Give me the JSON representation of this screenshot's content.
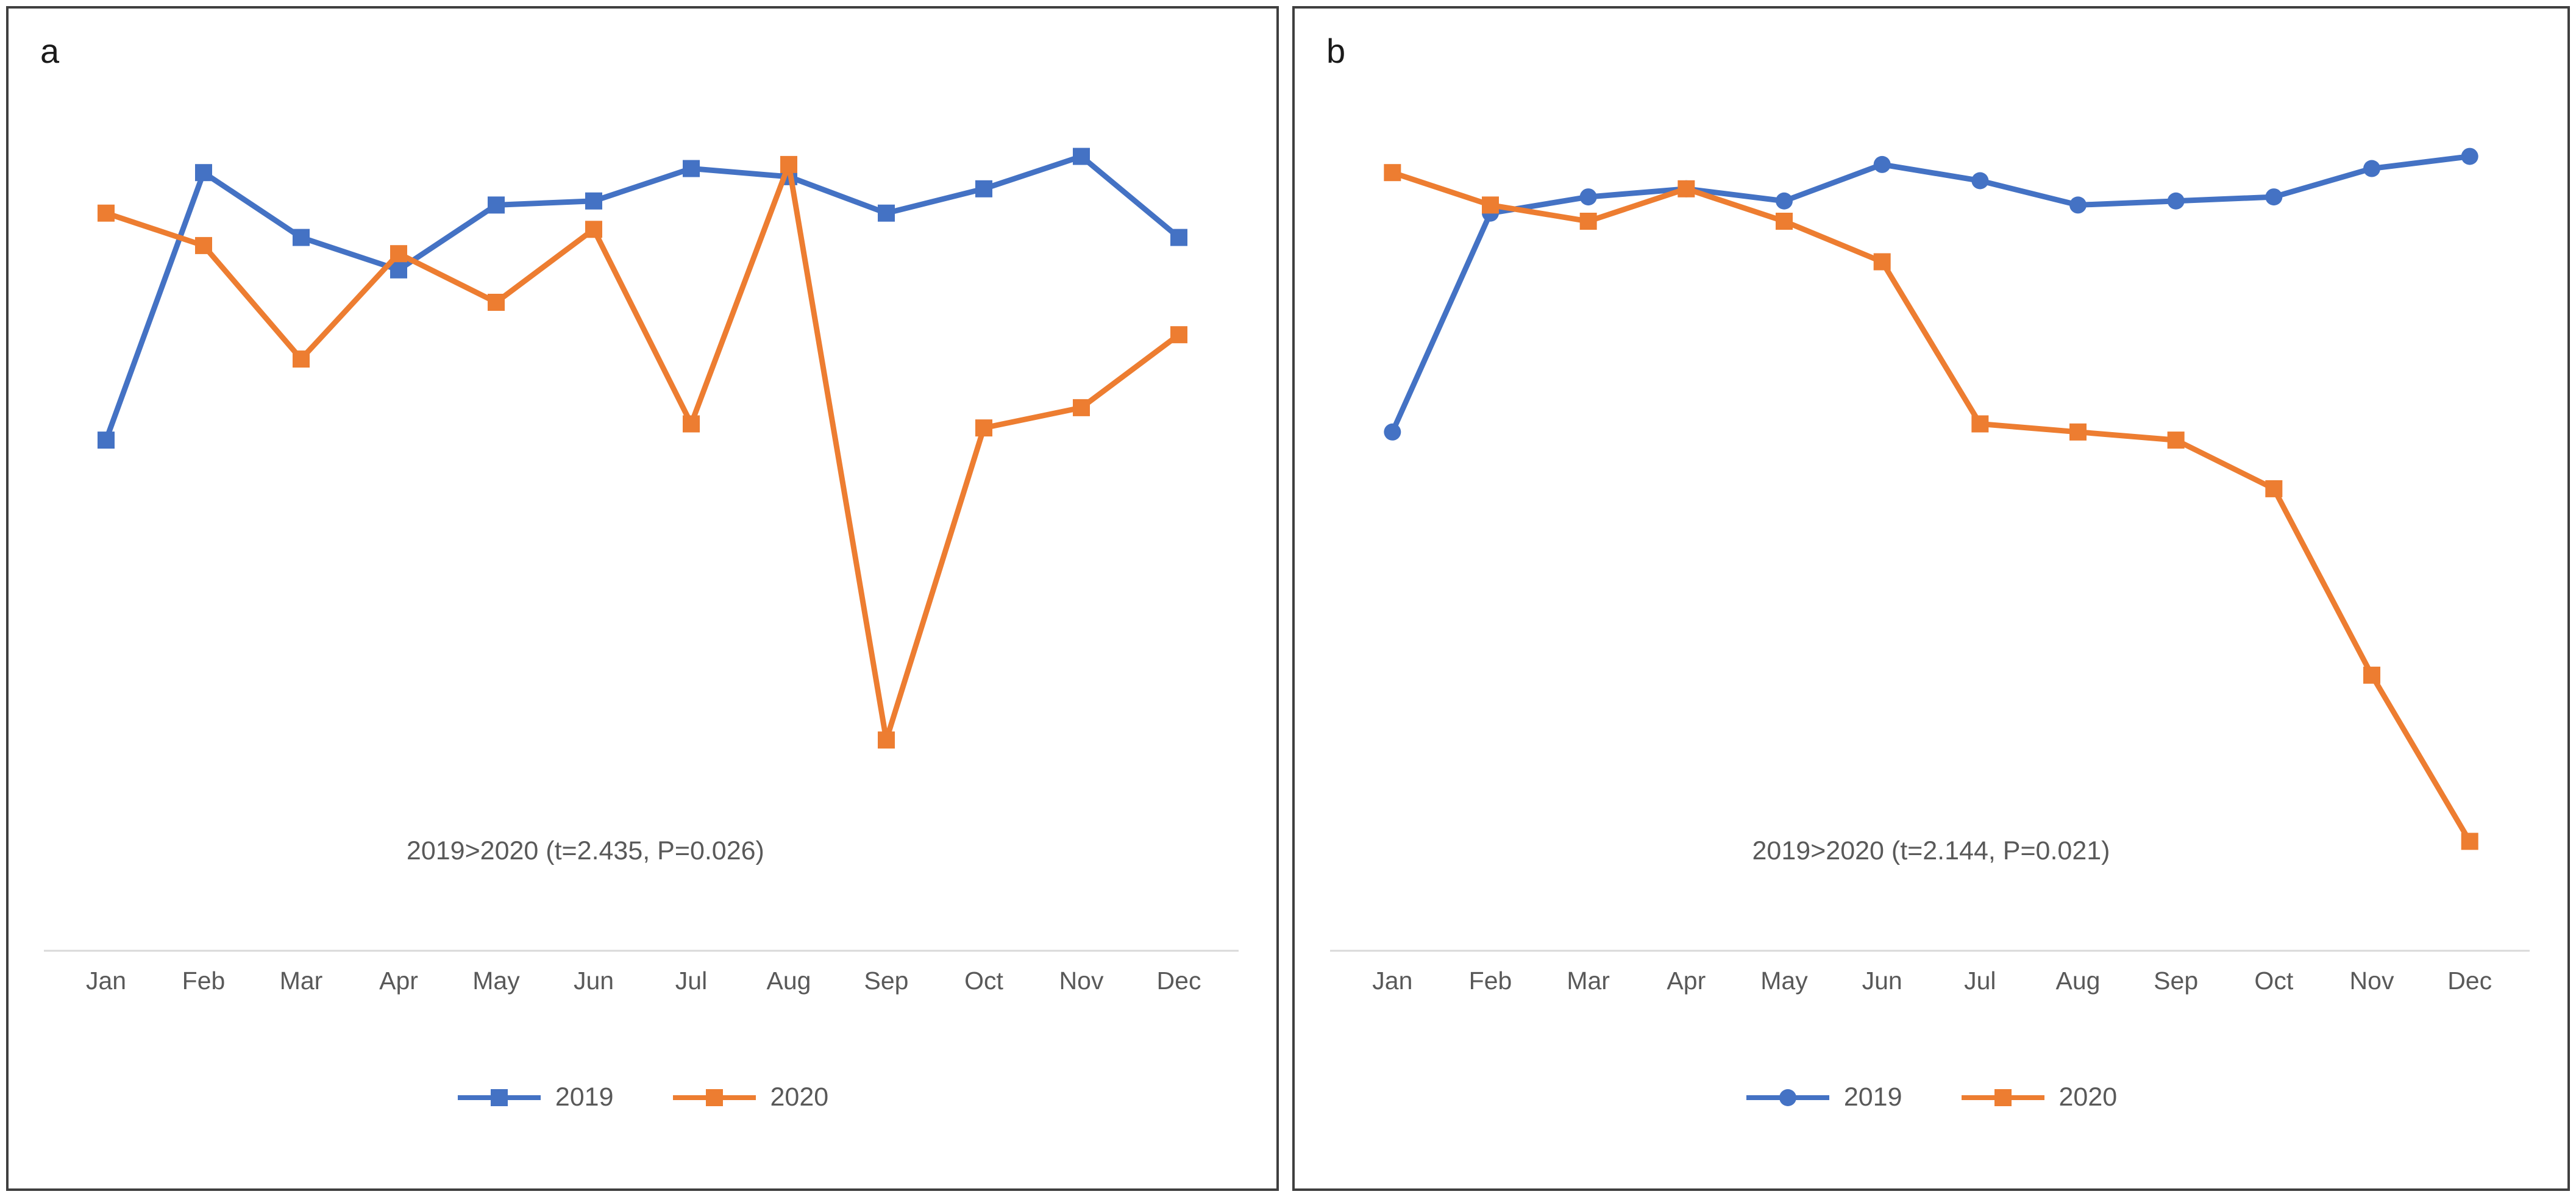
{
  "colors": {
    "series_2019": "#4472C4",
    "series_2020": "#ED7D31",
    "axis_line": "#D9D9D9",
    "text_gray": "#595959",
    "panel_border": "#3F3F3F"
  },
  "chart_data": [
    {
      "type": "line",
      "panel_label": "a",
      "title": "",
      "xlabel": "",
      "ylabel": "",
      "categories": [
        "Jan",
        "Feb",
        "Mar",
        "Apr",
        "May",
        "Jun",
        "Jul",
        "Aug",
        "Sep",
        "Oct",
        "Nov",
        "Dec"
      ],
      "series": [
        {
          "name": "2019",
          "marker": "square",
          "color": "#4472C4",
          "values": [
            63,
            96,
            88,
            84,
            92,
            92.5,
            96.5,
            95.5,
            91,
            94,
            98,
            88
          ]
        },
        {
          "name": "2020",
          "marker": "square",
          "color": "#ED7D31",
          "values": [
            91,
            87,
            73,
            86,
            80,
            89,
            65,
            97,
            26,
            64.5,
            67,
            76
          ]
        }
      ],
      "annotation": "2019>2020 (t=2.435, P=0.026)",
      "ylim": [
        0,
        100
      ],
      "grid": false,
      "y_axis_visible": false,
      "legend_position": "bottom"
    },
    {
      "type": "line",
      "panel_label": "b",
      "title": "",
      "xlabel": "",
      "ylabel": "",
      "categories": [
        "Jan",
        "Feb",
        "Mar",
        "Apr",
        "May",
        "Jun",
        "Jul",
        "Aug",
        "Sep",
        "Oct",
        "Nov",
        "Dec"
      ],
      "series": [
        {
          "name": "2019",
          "marker": "circle",
          "color": "#4472C4",
          "values": [
            64,
            91,
            93,
            94,
            92.5,
            97,
            95,
            92,
            92.5,
            93,
            96.5,
            98
          ]
        },
        {
          "name": "2020",
          "marker": "square",
          "color": "#ED7D31",
          "values": [
            96,
            92,
            90,
            94,
            90,
            85,
            65,
            64,
            63,
            57,
            34,
            13.5
          ]
        }
      ],
      "annotation": "2019>2020 (t=2.144, P=0.021)",
      "ylim": [
        0,
        100
      ],
      "grid": false,
      "y_axis_visible": false,
      "legend_position": "bottom"
    }
  ]
}
